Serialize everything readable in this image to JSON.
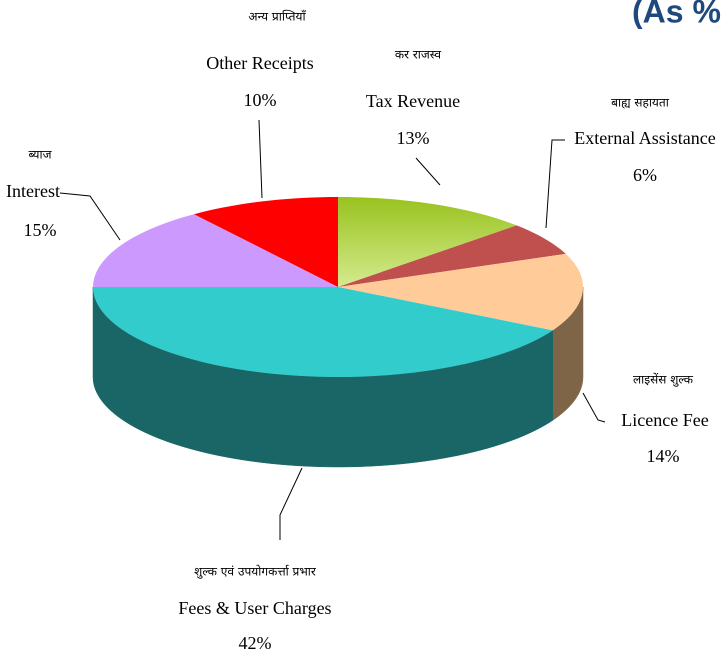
{
  "chart_data": {
    "type": "pie3d",
    "title": "(As %",
    "categories": [
      "Tax Revenue",
      "External Assistance",
      "Licence Fee",
      "Fees & User Charges",
      "Interest",
      "Other Receipts"
    ],
    "hindi_labels": [
      "कर राजस्व",
      "बाह्य सहायता",
      "लाइसेंस शुल्क",
      "शुल्क एवं उपयोगकर्त्ता प्रभार",
      "ब्याज",
      "अन्य प्राप्तियाँ"
    ],
    "values": [
      13,
      6,
      14,
      42,
      15,
      10
    ],
    "value_labels": [
      "13%",
      "6%",
      "14%",
      "42%",
      "15%",
      "10%"
    ],
    "colors": [
      "#a9d13e",
      "#c0504d",
      "#ffcc99",
      "#33cccc",
      "#cc99ff",
      "#ff0000"
    ],
    "side_colors": [
      "#6f8a25",
      "#7f3230",
      "#7f6548",
      "#1a6666",
      "#7f5fa0",
      "#a00000"
    ]
  }
}
